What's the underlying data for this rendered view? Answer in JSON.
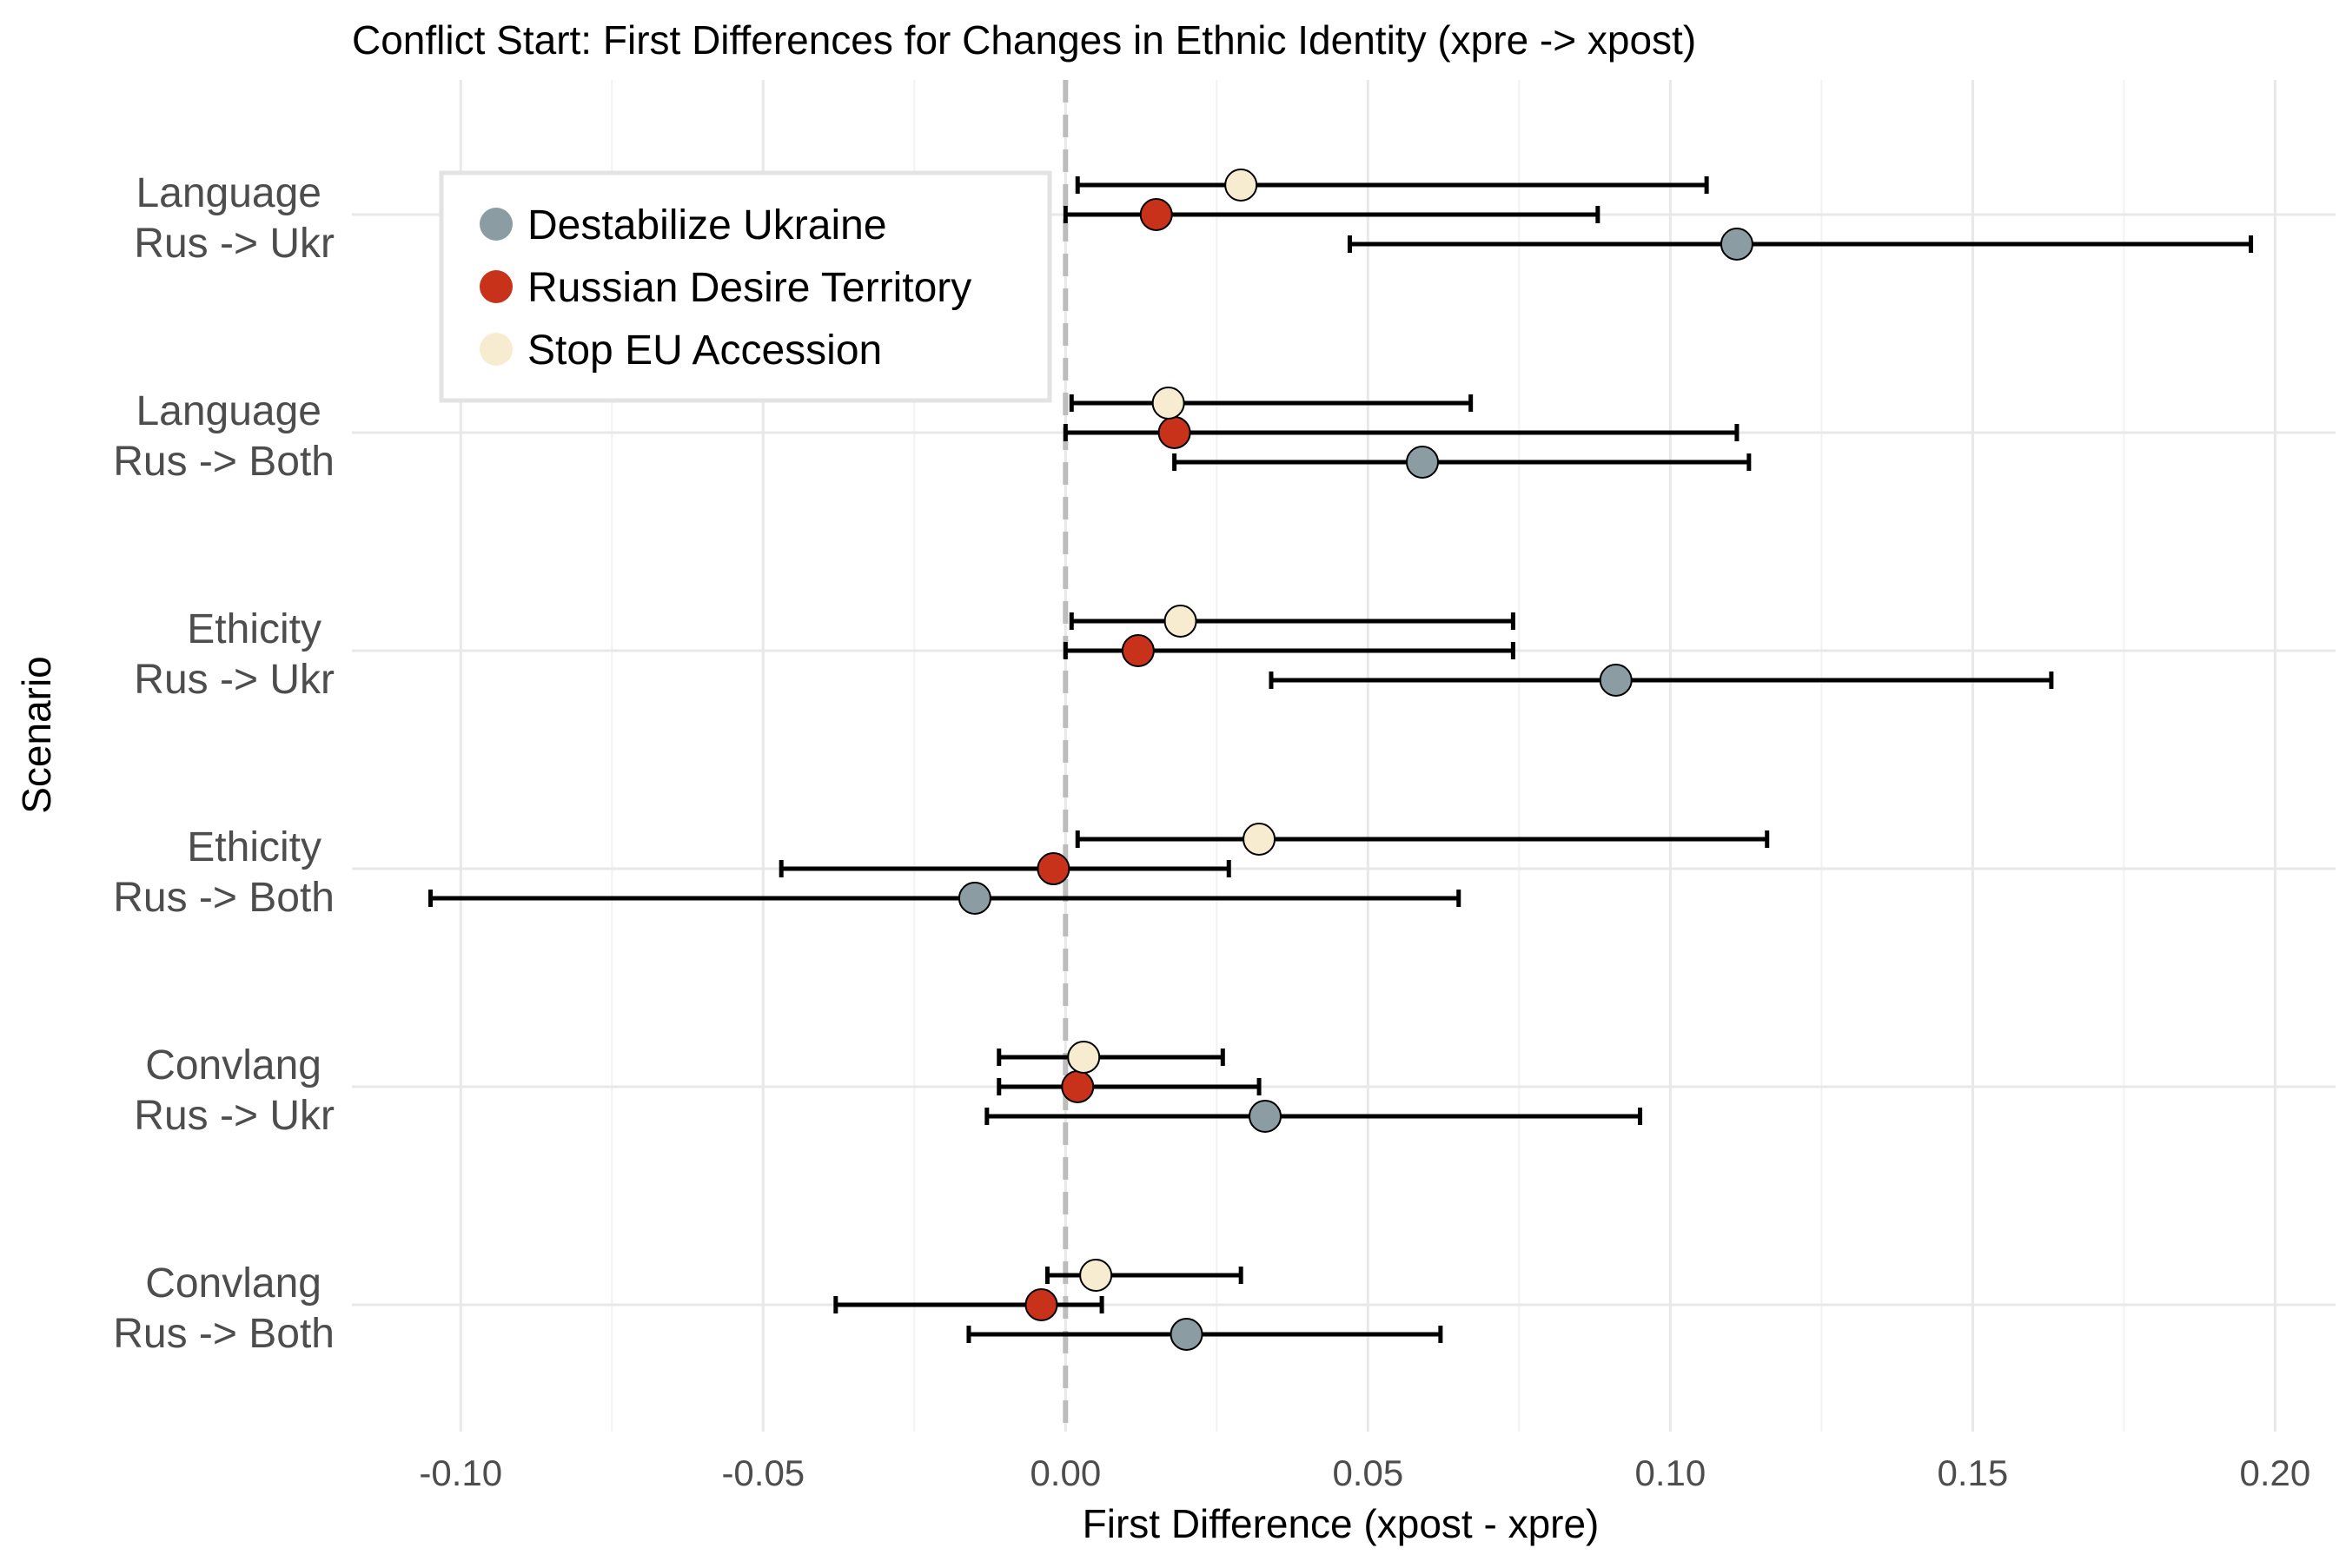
{
  "chart_data": {
    "type": "scatter",
    "subtype": "dot-and-errorbar",
    "orientation": "horizontal",
    "title": "Conflict Start: First Differences for Changes in Ethnic Identity (xpre -> xpost)",
    "xlabel": "First Difference (xpost - xpre)",
    "ylabel": "Scenario",
    "xlim": [
      -0.118,
      0.21
    ],
    "x_ticks": [
      -0.1,
      -0.05,
      0.0,
      0.05,
      0.1,
      0.15,
      0.2
    ],
    "x_tick_labels": [
      "-0.10",
      "-0.05",
      "0.00",
      "0.05",
      "0.10",
      "0.15",
      "0.20"
    ],
    "reference_line": {
      "x": 0,
      "style": "dashed"
    },
    "grid": true,
    "legend_position": "top-left",
    "categories": [
      {
        "line1": "Language",
        "line2": "Rus -> Ukr"
      },
      {
        "line1": "Language",
        "line2": "Rus -> Both"
      },
      {
        "line1": "Ethicity",
        "line2": "Rus -> Ukr"
      },
      {
        "line1": "Ethicity",
        "line2": "Rus -> Both"
      },
      {
        "line1": "Convlang",
        "line2": "Rus -> Ukr"
      },
      {
        "line1": "Convlang",
        "line2": "Rus -> Both"
      }
    ],
    "series": [
      {
        "name": "Destabilize Ukraine",
        "color": "#8c9ca3",
        "estimate": [
          0.111,
          0.059,
          0.091,
          -0.015,
          0.033,
          0.02
        ],
        "lower": [
          0.047,
          0.018,
          0.034,
          -0.105,
          -0.013,
          -0.016
        ],
        "upper": [
          0.196,
          0.113,
          0.163,
          0.065,
          0.095,
          0.062
        ]
      },
      {
        "name": "Russian Desire Territory",
        "color": "#c8321a",
        "estimate": [
          0.015,
          0.018,
          0.012,
          -0.002,
          0.002,
          -0.004
        ],
        "lower": [
          0.0,
          0.0,
          0.0,
          -0.047,
          -0.011,
          -0.038
        ],
        "upper": [
          0.088,
          0.111,
          0.074,
          0.027,
          0.032,
          0.006
        ]
      },
      {
        "name": "Stop EU Accession",
        "color": "#f8ecd0",
        "estimate": [
          0.029,
          0.017,
          0.019,
          0.032,
          0.003,
          0.005
        ],
        "lower": [
          0.002,
          0.001,
          0.001,
          0.002,
          -0.011,
          -0.003
        ],
        "upper": [
          0.106,
          0.067,
          0.074,
          0.116,
          0.026,
          0.029
        ]
      }
    ]
  }
}
